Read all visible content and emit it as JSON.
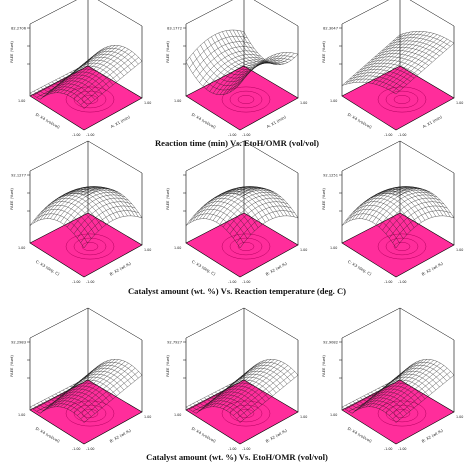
{
  "colors": {
    "floor": "#ff2d9b",
    "floor_line": "#b3005e",
    "mesh": "#1a1a1a",
    "frame": "#000000"
  },
  "chart_data": {
    "type": "surface",
    "rows": [
      {
        "caption": "Reaction time (min) Vs. EtoH/OMR (vol/vol)",
        "plots": [
          {
            "zlabel": "FAEE (%wt)",
            "xlabel": "A: X1 (min)",
            "ylabel": "D: X4 (vol/vol)",
            "zticks": [
              "82.2706",
              "",
              ""
            ],
            "xticks": [
              "-1.00",
              "1.00"
            ],
            "yticks": [
              "1.00",
              "-1.00"
            ],
            "shape": "ridge"
          },
          {
            "zlabel": "FAEE (%wt)",
            "xlabel": "A: X1 (min)",
            "ylabel": "D: X4 (vol/vol)",
            "zticks": [
              "83.1772",
              "",
              ""
            ],
            "xticks": [
              "-1.00",
              "1.00"
            ],
            "yticks": [
              "1.00",
              "-1.00"
            ],
            "shape": "saddle"
          },
          {
            "zlabel": "FAEE (%wt)",
            "xlabel": "A: X1 (min)",
            "ylabel": "D: X4 (vol/vol)",
            "zticks": [
              "82.3047",
              "",
              ""
            ],
            "xticks": [
              "-1.00",
              "1.00"
            ],
            "yticks": [
              "1.00",
              "-1.00"
            ],
            "shape": "rise"
          }
        ]
      },
      {
        "caption": "Catalyst amount (wt. %) Vs. Reaction temperature (deg. C)",
        "plots": [
          {
            "zlabel": "FAEE (%wt)",
            "xlabel": "B: X2 (wt.%)",
            "ylabel": "C: X3 (deg. C)",
            "zticks": [
              "92.1277",
              "",
              ""
            ],
            "xticks": [
              "-1.00",
              "1.00"
            ],
            "yticks": [
              "1.00",
              "-1.00"
            ],
            "shape": "dome"
          },
          {
            "zlabel": "FAEE (%wt)",
            "xlabel": "B: X2 (wt.%)",
            "ylabel": "C: X3 (deg. C)",
            "zticks": [
              "",
              "",
              ""
            ],
            "xticks": [
              "-1.00",
              "1.00"
            ],
            "yticks": [
              "1.00",
              "-1.00"
            ],
            "shape": "dome"
          },
          {
            "zlabel": "FAEE (%wt)",
            "xlabel": "B: X2 (wt.%)",
            "ylabel": "C: X3 (deg. C)",
            "zticks": [
              "92.1251",
              "",
              ""
            ],
            "xticks": [
              "-1.00",
              "1.00"
            ],
            "yticks": [
              "1.00",
              "-1.00"
            ],
            "shape": "dome"
          }
        ]
      },
      {
        "caption": "Catalyst amount (wt. %) Vs. EtoH/OMR (vol/vol)",
        "plots": [
          {
            "zlabel": "FAEE (%wt)",
            "xlabel": "B: X2 (wt.%)",
            "ylabel": "D: X4 (vol/vol)",
            "zticks": [
              "92.2983",
              "",
              ""
            ],
            "xticks": [
              "-1.00",
              "1.00"
            ],
            "yticks": [
              "1.00",
              "-1.00"
            ],
            "shape": "ridge"
          },
          {
            "zlabel": "FAEE (%wt)",
            "xlabel": "B: X2 (wt.%)",
            "ylabel": "D: X4 (vol/vol)",
            "zticks": [
              "92.7927",
              "",
              ""
            ],
            "xticks": [
              "-1.00",
              "1.00"
            ],
            "yticks": [
              "1.00",
              "-1.00"
            ],
            "shape": "ridge"
          },
          {
            "zlabel": "FAEE (%wt)",
            "xlabel": "B: X2 (wt.%)",
            "ylabel": "D: X4 (vol/vol)",
            "zticks": [
              "92.9082",
              "",
              ""
            ],
            "xticks": [
              "-1.00",
              "1.00"
            ],
            "yticks": [
              "1.00",
              "-1.00"
            ],
            "shape": "ridge"
          }
        ]
      }
    ]
  }
}
